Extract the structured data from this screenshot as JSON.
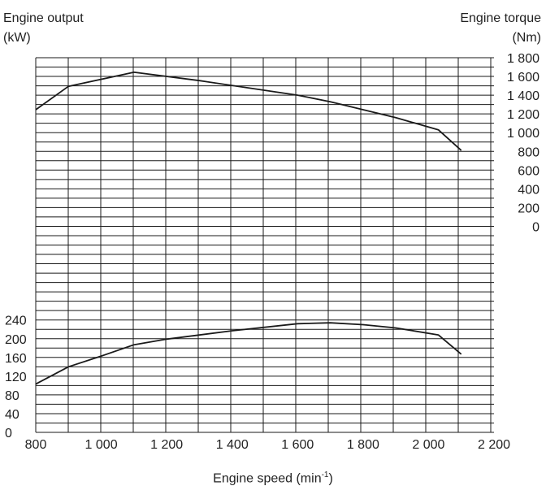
{
  "chart_data": {
    "type": "line",
    "grid": true,
    "left_axis": {
      "title_line1": "Engine output",
      "title_line2": "(kW)",
      "ticks": [
        "0",
        "40",
        "80",
        "120",
        "160",
        "200",
        "240"
      ],
      "range": [
        0,
        240
      ]
    },
    "right_axis": {
      "title_line1": "Engine torque",
      "title_line2": "(Nm)",
      "ticks": [
        "0",
        "200",
        "400",
        "600",
        "800",
        "1 000",
        "1 200",
        "1 400",
        "1 600",
        "1 800"
      ],
      "range": [
        0,
        1800
      ]
    },
    "x_axis": {
      "label": "Engine speed (min",
      "label_sup": "-1",
      "label_end": ")",
      "ticks": [
        "800",
        "1 000",
        "1 200",
        "1 400",
        "1 600",
        "1 800",
        "2 000",
        "2 200"
      ],
      "range": [
        800,
        2200
      ]
    },
    "series": [
      {
        "axis": "right",
        "points": [
          [
            800,
            1245
          ],
          [
            900,
            1495
          ],
          [
            1100,
            1645
          ],
          [
            1300,
            1555
          ],
          [
            1600,
            1400
          ],
          [
            1700,
            1330
          ],
          [
            1900,
            1160
          ],
          [
            2030,
            1030
          ],
          [
            2100,
            810
          ]
        ]
      },
      {
        "axis": "left",
        "points": [
          [
            800,
            103
          ],
          [
            900,
            140
          ],
          [
            1000,
            163
          ],
          [
            1100,
            187
          ],
          [
            1200,
            199
          ],
          [
            1400,
            217
          ],
          [
            1600,
            232
          ],
          [
            1700,
            234
          ],
          [
            1800,
            230
          ],
          [
            1900,
            223
          ],
          [
            2030,
            208
          ],
          [
            2100,
            167
          ]
        ]
      }
    ],
    "colors": {
      "line": "#1a1a1a",
      "grid": "#1a1a1a"
    }
  }
}
